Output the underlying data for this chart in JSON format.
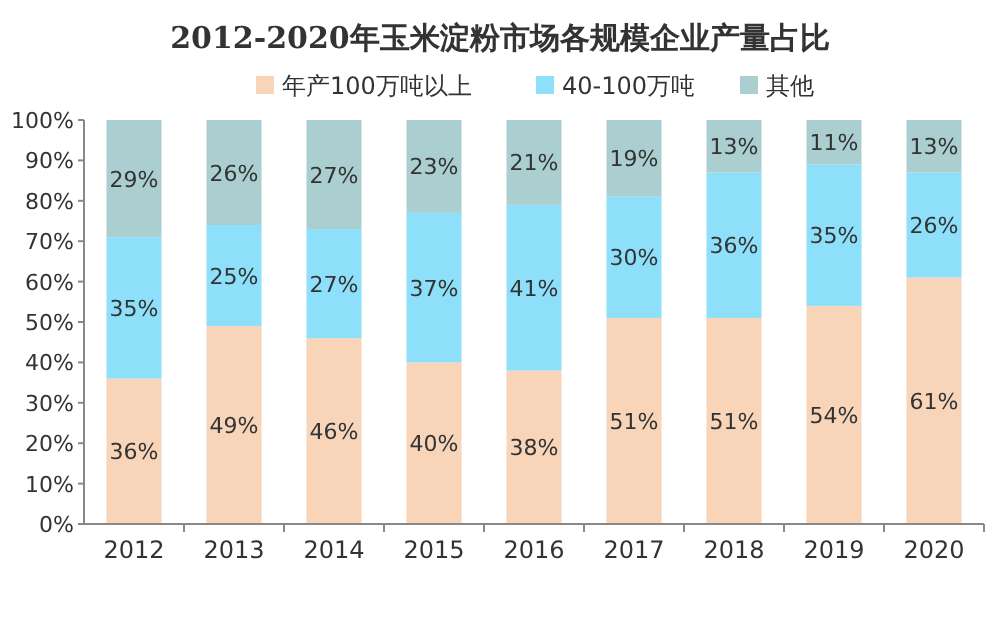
{
  "chart_data": {
    "type": "bar",
    "stacked": true,
    "title": "2012-2020年玉米淀粉市场各规模企业产量占比",
    "categories": [
      "2012",
      "2013",
      "2014",
      "2015",
      "2016",
      "2017",
      "2018",
      "2019",
      "2020"
    ],
    "series": [
      {
        "name": "年产100万吨以上",
        "color": "#f8d5b8",
        "values": [
          36,
          49,
          46,
          40,
          38,
          51,
          51,
          54,
          61
        ],
        "value_labels": [
          "36%",
          "49%",
          "46%",
          "40%",
          "38%",
          "51%",
          "51%",
          "54%",
          "61%"
        ]
      },
      {
        "name": "40-100万吨",
        "color": "#8ee0fa",
        "values": [
          35,
          25,
          27,
          37,
          41,
          30,
          36,
          35,
          26
        ],
        "value_labels": [
          "35%",
          "25%",
          "27%",
          "37%",
          "41%",
          "30%",
          "36%",
          "35%",
          "26%"
        ]
      },
      {
        "name": "其他",
        "color": "#abcfd1",
        "values": [
          29,
          26,
          27,
          23,
          21,
          19,
          13,
          11,
          13
        ],
        "value_labels": [
          "29%",
          "26%",
          "27%",
          "23%",
          "21%",
          "19%",
          "13%",
          "11%",
          "13%"
        ]
      }
    ],
    "legend": "top",
    "grid": false,
    "ylim": [
      0,
      100
    ],
    "yticks": [
      {
        "value": 0,
        "label": "0%"
      },
      {
        "value": 10,
        "label": "10%"
      },
      {
        "value": 20,
        "label": "20%"
      },
      {
        "value": 30,
        "label": "30%"
      },
      {
        "value": 40,
        "label": "40%"
      },
      {
        "value": 50,
        "label": "50%"
      },
      {
        "value": 60,
        "label": "60%"
      },
      {
        "value": 70,
        "label": "70%"
      },
      {
        "value": 80,
        "label": "80%"
      },
      {
        "value": 90,
        "label": "90%"
      },
      {
        "value": 100,
        "label": "100%"
      }
    ]
  }
}
